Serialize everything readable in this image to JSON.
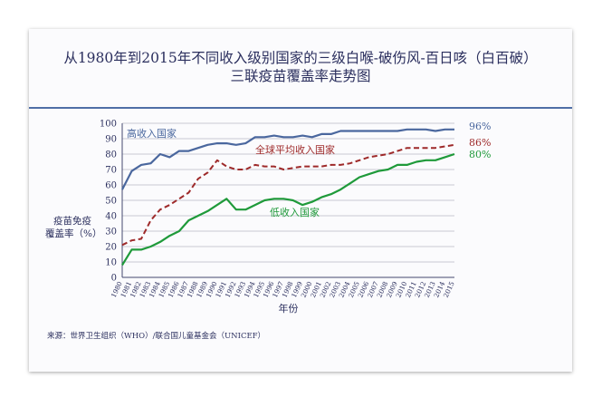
{
  "chart_data": {
    "type": "line",
    "title_line1": "从1980年到2015年不同收入级别国家的三级白喉-破伤风-百日咳（白百破）",
    "title_line2": "三联疫苗覆盖率走势图",
    "xlabel": "年份",
    "ylabel_line1": "疫苗免疫",
    "ylabel_line2": "覆盖率（%）",
    "ylim": [
      0,
      100
    ],
    "yticks": [
      0,
      10,
      20,
      30,
      40,
      50,
      60,
      70,
      80,
      90,
      100
    ],
    "x": [
      1980,
      1981,
      1982,
      1983,
      1984,
      1985,
      1986,
      1987,
      1988,
      1989,
      1990,
      1991,
      1992,
      1993,
      1994,
      1995,
      1996,
      1997,
      1998,
      1999,
      2000,
      2001,
      2002,
      2003,
      2004,
      2005,
      2006,
      2007,
      2008,
      2009,
      2010,
      2011,
      2012,
      2013,
      2014,
      2015
    ],
    "grid": "horizontal",
    "series": [
      {
        "name": "高收入国家",
        "color": "#4a679e",
        "dash": "solid",
        "end_label": "96%",
        "values": [
          57,
          69,
          73,
          74,
          80,
          78,
          82,
          82,
          84,
          86,
          87,
          87,
          86,
          87,
          91,
          91,
          92,
          91,
          91,
          92,
          91,
          93,
          93,
          95,
          95,
          95,
          95,
          95,
          95,
          95,
          96,
          96,
          96,
          95,
          96,
          96
        ]
      },
      {
        "name": "全球平均收入国家",
        "color": "#9e2a2a",
        "dash": "dashed",
        "end_label": "86%",
        "values": [
          21,
          24,
          25,
          37,
          44,
          47,
          51,
          55,
          64,
          68,
          76,
          72,
          70,
          70,
          73,
          72,
          72,
          70,
          71,
          72,
          72,
          72,
          73,
          73,
          74,
          76,
          78,
          79,
          80,
          82,
          84,
          84,
          84,
          84,
          85,
          86
        ]
      },
      {
        "name": "低收入国家",
        "color": "#1f9a3a",
        "dash": "solid",
        "end_label": "80%",
        "values": [
          8,
          18,
          18,
          20,
          23,
          27,
          30,
          37,
          40,
          43,
          47,
          51,
          44,
          44,
          47,
          50,
          51,
          51,
          50,
          47,
          49,
          52,
          54,
          57,
          61,
          65,
          67,
          69,
          70,
          73,
          73,
          75,
          76,
          76,
          78,
          80
        ]
      }
    ]
  },
  "source": "来源：世界卫生组织（WHO）/联合国儿童基金会（UNICEF）"
}
